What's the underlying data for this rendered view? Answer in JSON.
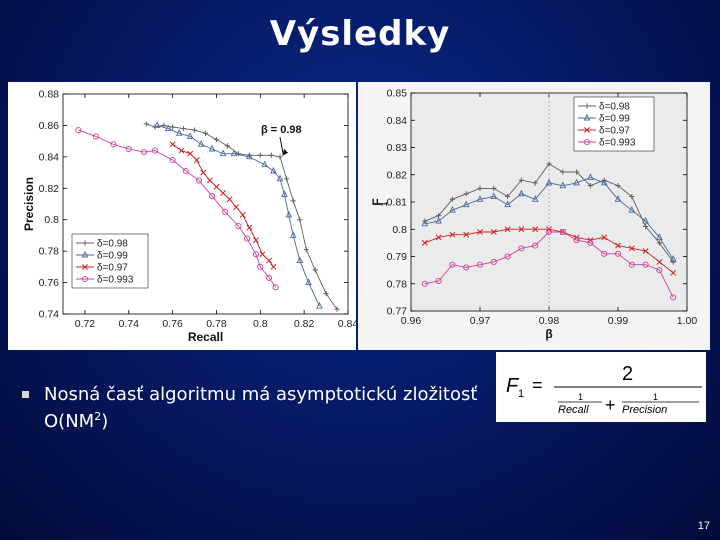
{
  "slide": {
    "title": "Výsledky",
    "bullet_main": "Nosná časť algoritmu má asymptotickú zložitosť O(NM",
    "bullet_sup": "2",
    "bullet_end": ")",
    "page_number": "17"
  },
  "formula": {
    "lhs": "F",
    "lhs_sub": "1",
    "eq": "=",
    "numerator": "2",
    "term1_num": "1",
    "term1_den": "Recall",
    "plus": "+",
    "term2_num": "1",
    "term2_den": "Precision"
  },
  "chart_data": [
    {
      "type": "line",
      "xlabel": "Recall",
      "ylabel": "Precision",
      "xlim": [
        0.71,
        0.84
      ],
      "ylim": [
        0.74,
        0.88
      ],
      "xticks": [
        "0.72",
        "0.74",
        "0.76",
        "0.78",
        "0.8",
        "0.82",
        "0.84"
      ],
      "yticks": [
        "0.88",
        "0.86",
        "0.84",
        "0.82",
        "0.8",
        "0.78",
        "0.76",
        "0.74"
      ],
      "legend_position": "bottom-left",
      "annotation": "β = 0.98",
      "series": [
        {
          "name": "δ=0.98",
          "color": "#606060",
          "marker": "plus",
          "points": [
            [
              0.748,
              0.861
            ],
            [
              0.752,
              0.859
            ],
            [
              0.756,
              0.86
            ],
            [
              0.76,
              0.859
            ],
            [
              0.765,
              0.858
            ],
            [
              0.77,
              0.857
            ],
            [
              0.775,
              0.855
            ],
            [
              0.78,
              0.851
            ],
            [
              0.785,
              0.847
            ],
            [
              0.79,
              0.842
            ],
            [
              0.795,
              0.841
            ],
            [
              0.8,
              0.841
            ],
            [
              0.805,
              0.841
            ],
            [
              0.809,
              0.84
            ],
            [
              0.812,
              0.826
            ],
            [
              0.815,
              0.812
            ],
            [
              0.818,
              0.8
            ],
            [
              0.821,
              0.781
            ],
            [
              0.825,
              0.768
            ],
            [
              0.83,
              0.753
            ],
            [
              0.835,
              0.743
            ]
          ]
        },
        {
          "name": "δ=0.99",
          "color": "#4a6aa0",
          "marker": "triangle",
          "points": [
            [
              0.753,
              0.86
            ],
            [
              0.758,
              0.858
            ],
            [
              0.763,
              0.855
            ],
            [
              0.768,
              0.853
            ],
            [
              0.773,
              0.848
            ],
            [
              0.778,
              0.845
            ],
            [
              0.783,
              0.842
            ],
            [
              0.788,
              0.842
            ],
            [
              0.795,
              0.84
            ],
            [
              0.802,
              0.835
            ],
            [
              0.806,
              0.831
            ],
            [
              0.809,
              0.826
            ],
            [
              0.811,
              0.816
            ],
            [
              0.813,
              0.803
            ],
            [
              0.815,
              0.79
            ],
            [
              0.818,
              0.774
            ],
            [
              0.822,
              0.76
            ],
            [
              0.827,
              0.745
            ]
          ]
        },
        {
          "name": "δ=0.97",
          "color": "#d02020",
          "marker": "x",
          "points": [
            [
              0.76,
              0.848
            ],
            [
              0.764,
              0.844
            ],
            [
              0.768,
              0.842
            ],
            [
              0.771,
              0.838
            ],
            [
              0.774,
              0.83
            ],
            [
              0.777,
              0.825
            ],
            [
              0.78,
              0.821
            ],
            [
              0.783,
              0.817
            ],
            [
              0.786,
              0.813
            ],
            [
              0.789,
              0.808
            ],
            [
              0.792,
              0.803
            ],
            [
              0.795,
              0.795
            ],
            [
              0.798,
              0.787
            ],
            [
              0.801,
              0.778
            ],
            [
              0.804,
              0.774
            ],
            [
              0.806,
              0.77
            ]
          ]
        },
        {
          "name": "δ=0.993",
          "color": "#d040a0",
          "marker": "circle",
          "points": [
            [
              0.717,
              0.857
            ],
            [
              0.725,
              0.853
            ],
            [
              0.733,
              0.848
            ],
            [
              0.74,
              0.845
            ],
            [
              0.747,
              0.843
            ],
            [
              0.752,
              0.844
            ],
            [
              0.76,
              0.838
            ],
            [
              0.766,
              0.831
            ],
            [
              0.772,
              0.825
            ],
            [
              0.778,
              0.815
            ],
            [
              0.784,
              0.805
            ],
            [
              0.79,
              0.796
            ],
            [
              0.794,
              0.788
            ],
            [
              0.798,
              0.778
            ],
            [
              0.8,
              0.77
            ],
            [
              0.804,
              0.763
            ],
            [
              0.807,
              0.757
            ]
          ]
        }
      ]
    },
    {
      "type": "line",
      "xlabel": "β",
      "ylabel": "F",
      "ylabel_sub": "1",
      "xlim": [
        0.96,
        1.0
      ],
      "ylim": [
        0.77,
        0.85
      ],
      "xticks": [
        "0.96",
        "0.97",
        "0.98",
        "0.99",
        "1.00"
      ],
      "yticks": [
        "0.85",
        "0.84",
        "0.83",
        "0.82",
        "0.81",
        "0.8",
        "0.79",
        "0.78",
        "0.77"
      ],
      "legend_position": "top-right",
      "vertical_reference": 0.98,
      "series": [
        {
          "name": "δ=0.98",
          "color": "#606060",
          "marker": "plus",
          "points": [
            [
              0.962,
              0.803
            ],
            [
              0.964,
              0.805
            ],
            [
              0.966,
              0.811
            ],
            [
              0.968,
              0.813
            ],
            [
              0.97,
              0.815
            ],
            [
              0.972,
              0.815
            ],
            [
              0.974,
              0.812
            ],
            [
              0.976,
              0.818
            ],
            [
              0.978,
              0.817
            ],
            [
              0.98,
              0.824
            ],
            [
              0.982,
              0.821
            ],
            [
              0.984,
              0.821
            ],
            [
              0.986,
              0.816
            ],
            [
              0.988,
              0.818
            ],
            [
              0.99,
              0.816
            ],
            [
              0.992,
              0.812
            ],
            [
              0.994,
              0.801
            ],
            [
              0.996,
              0.795
            ],
            [
              0.998,
              0.788
            ]
          ]
        },
        {
          "name": "δ=0.99",
          "color": "#4a6aa0",
          "marker": "triangle",
          "points": [
            [
              0.962,
              0.802
            ],
            [
              0.964,
              0.803
            ],
            [
              0.966,
              0.807
            ],
            [
              0.968,
              0.809
            ],
            [
              0.97,
              0.811
            ],
            [
              0.972,
              0.812
            ],
            [
              0.974,
              0.809
            ],
            [
              0.976,
              0.813
            ],
            [
              0.978,
              0.811
            ],
            [
              0.98,
              0.817
            ],
            [
              0.982,
              0.816
            ],
            [
              0.984,
              0.817
            ],
            [
              0.986,
              0.819
            ],
            [
              0.988,
              0.817
            ],
            [
              0.99,
              0.811
            ],
            [
              0.992,
              0.807
            ],
            [
              0.994,
              0.803
            ],
            [
              0.996,
              0.797
            ],
            [
              0.998,
              0.789
            ]
          ]
        },
        {
          "name": "δ=0.97",
          "color": "#d02020",
          "marker": "x",
          "points": [
            [
              0.962,
              0.795
            ],
            [
              0.964,
              0.797
            ],
            [
              0.966,
              0.798
            ],
            [
              0.968,
              0.798
            ],
            [
              0.97,
              0.799
            ],
            [
              0.972,
              0.799
            ],
            [
              0.974,
              0.8
            ],
            [
              0.976,
              0.8
            ],
            [
              0.978,
              0.8
            ],
            [
              0.98,
              0.8
            ],
            [
              0.982,
              0.799
            ],
            [
              0.984,
              0.797
            ],
            [
              0.986,
              0.796
            ],
            [
              0.988,
              0.797
            ],
            [
              0.99,
              0.794
            ],
            [
              0.992,
              0.793
            ],
            [
              0.994,
              0.792
            ],
            [
              0.996,
              0.788
            ],
            [
              0.998,
              0.784
            ]
          ]
        },
        {
          "name": "δ=0.993",
          "color": "#d040a0",
          "marker": "circle",
          "points": [
            [
              0.962,
              0.78
            ],
            [
              0.964,
              0.781
            ],
            [
              0.966,
              0.787
            ],
            [
              0.968,
              0.786
            ],
            [
              0.97,
              0.787
            ],
            [
              0.972,
              0.788
            ],
            [
              0.974,
              0.79
            ],
            [
              0.976,
              0.793
            ],
            [
              0.978,
              0.794
            ],
            [
              0.98,
              0.799
            ],
            [
              0.982,
              0.799
            ],
            [
              0.984,
              0.796
            ],
            [
              0.986,
              0.795
            ],
            [
              0.988,
              0.791
            ],
            [
              0.99,
              0.791
            ],
            [
              0.992,
              0.787
            ],
            [
              0.994,
              0.787
            ],
            [
              0.996,
              0.785
            ],
            [
              0.998,
              0.775
            ]
          ]
        }
      ]
    }
  ]
}
